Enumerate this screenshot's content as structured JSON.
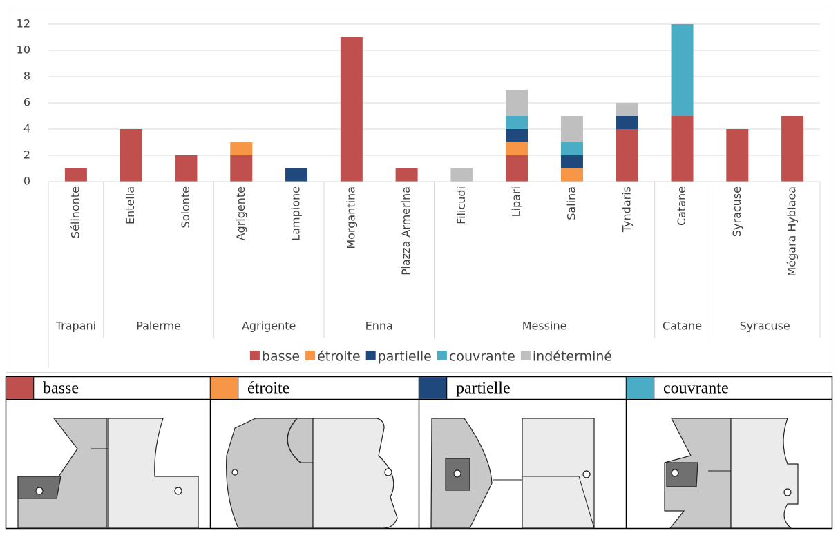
{
  "chart_data": {
    "type": "stacked_bar",
    "groups": [
      {
        "label": "Trapani",
        "categories": [
          "Sélinonte"
        ]
      },
      {
        "label": "Palerme",
        "categories": [
          "Entella",
          "Solonte"
        ]
      },
      {
        "label": "Agrigente",
        "categories": [
          "Agrigente",
          "Lampione"
        ]
      },
      {
        "label": "Enna",
        "categories": [
          "Morgantina",
          "Piazza Armerina"
        ]
      },
      {
        "label": "Messine",
        "categories": [
          "Filicudi",
          "Lipari",
          "Salina",
          "Tyndaris"
        ]
      },
      {
        "label": "Catane",
        "categories": [
          "Catane"
        ]
      },
      {
        "label": "Syracuse",
        "categories": [
          "Syracuse",
          "Mégara Hyblaea"
        ]
      }
    ],
    "series": [
      {
        "name": "basse",
        "color": "#c0504d",
        "values": [
          1,
          4,
          2,
          2,
          0,
          11,
          1,
          0,
          2,
          0,
          4,
          5,
          4,
          5
        ]
      },
      {
        "name": "étroite",
        "color": "#f79646",
        "values": [
          0,
          0,
          0,
          1,
          0,
          0,
          0,
          0,
          1,
          1,
          0,
          0,
          0,
          0
        ]
      },
      {
        "name": "partielle",
        "color": "#1f497d",
        "values": [
          0,
          0,
          0,
          0,
          1,
          0,
          0,
          0,
          1,
          1,
          1,
          0,
          0,
          0
        ]
      },
      {
        "name": "couvrante",
        "color": "#4bacc6",
        "values": [
          0,
          0,
          0,
          0,
          0,
          0,
          0,
          0,
          1,
          1,
          0,
          7,
          0,
          0
        ]
      },
      {
        "name": "indéterminé",
        "color": "#bfbfbf",
        "values": [
          0,
          0,
          0,
          0,
          0,
          0,
          0,
          1,
          2,
          2,
          1,
          0,
          0,
          0
        ]
      }
    ],
    "ylim": [
      0,
      12
    ],
    "yticks": [
      0,
      2,
      4,
      6,
      8,
      10,
      12
    ],
    "grid": true,
    "legend": "bottom"
  },
  "legend_table": {
    "columns": [
      {
        "label": "basse",
        "color": "#c0504d"
      },
      {
        "label": "étroite",
        "color": "#f79646"
      },
      {
        "label": "partielle",
        "color": "#1f497d"
      },
      {
        "label": "couvrante",
        "color": "#4bacc6"
      }
    ]
  }
}
